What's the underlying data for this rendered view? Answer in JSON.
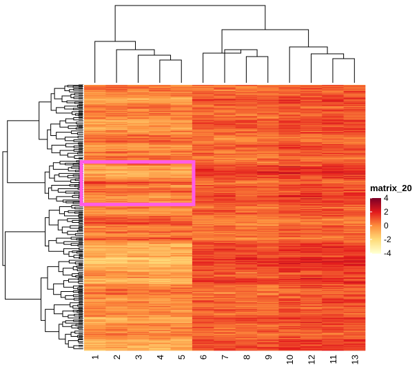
{
  "chart_data": {
    "type": "heatmap",
    "title": "",
    "xlabel": "",
    "ylabel": "",
    "columns": [
      "1",
      "2",
      "3",
      "4",
      "5",
      "6",
      "7",
      "8",
      "9",
      "10",
      "12",
      "11",
      "13"
    ],
    "row_count": 300,
    "value_range": [
      -4,
      4
    ],
    "legend": {
      "title": "matrix_20",
      "ticks": [
        "4",
        "2",
        "0",
        "-2",
        "-4"
      ],
      "colors": [
        "#800026",
        "#E31A1C",
        "#FD8D3C",
        "#FED976",
        "#FFFFCC"
      ],
      "placement": "right"
    },
    "column_group_means": {
      "1-5": -0.2,
      "6-9": 0.8,
      "10,12,11,13": 1.1
    },
    "highlight": {
      "color": "#FF5CE6",
      "columns": [
        "1",
        "2",
        "3",
        "4",
        "5"
      ],
      "row_fraction_range": [
        0.29,
        0.45
      ]
    },
    "row_dendrogram": true,
    "column_dendrogram": true
  }
}
